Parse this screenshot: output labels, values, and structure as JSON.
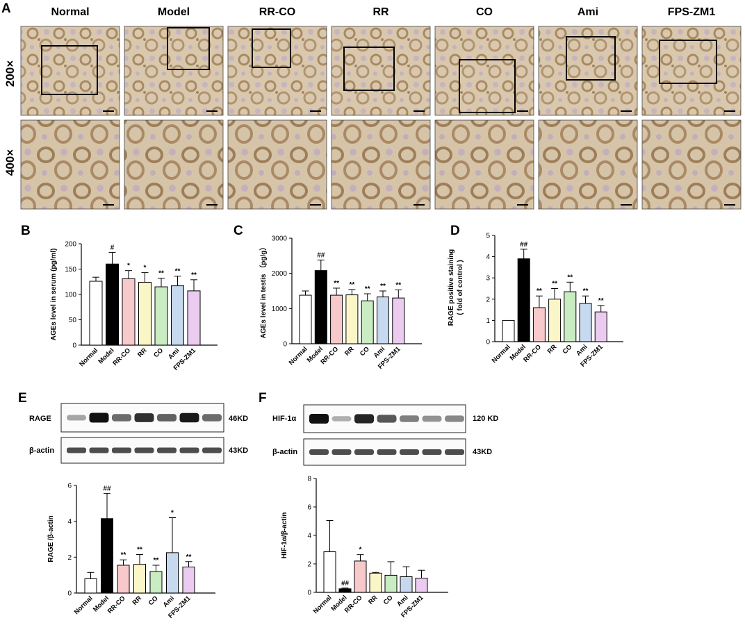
{
  "colors": {
    "Normal": "#ffffff",
    "Model": "#000000",
    "RR-CO": "#f7c9cb",
    "RR": "#fbf6c8",
    "CO": "#c9ecc3",
    "Ami": "#c6d9ef",
    "FPS-ZM1": "#eccbf1"
  },
  "panelA": {
    "letter": "A",
    "groups": [
      "Normal",
      "Model",
      "RR-CO",
      "RR",
      "CO",
      "Ami",
      "FPS-ZM1"
    ],
    "mag_200": "200×",
    "mag_400": "400×"
  },
  "blotE": {
    "letter": "E",
    "target_label": "RAGE",
    "target_kd": "46KD",
    "actin_label": "β-actin",
    "actin_kd": "43KD",
    "target_band_intensity": [
      0.25,
      1.0,
      0.55,
      0.85,
      0.6,
      0.95,
      0.55
    ]
  },
  "blotF": {
    "letter": "F",
    "target_label": "HIF-1α",
    "target_kd": "120 KD",
    "actin_label": "β-actin",
    "actin_kd": "43KD",
    "target_band_intensity": [
      1.0,
      0.2,
      0.9,
      0.65,
      0.45,
      0.35,
      0.4
    ]
  },
  "chart_data": [
    {
      "panel": "B",
      "type": "bar",
      "categories": [
        "Normal",
        "Model",
        "RR-CO",
        "RR",
        "CO",
        "Ami",
        "FPS-ZM1"
      ],
      "values": [
        126,
        160,
        131,
        124,
        115,
        117,
        107
      ],
      "errors": [
        8,
        23,
        16,
        19,
        17,
        19,
        22
      ],
      "annotations": [
        "",
        "#",
        "*",
        "*",
        "**",
        "**",
        "**"
      ],
      "ylabel": "AGEs level in serum (pg/ml)",
      "ylim": [
        0,
        200
      ],
      "yticks": [
        0,
        50,
        100,
        150,
        200
      ]
    },
    {
      "panel": "C",
      "type": "bar",
      "categories": [
        "Normal",
        "Model",
        "RR-CO",
        "RR",
        "CO",
        "Ami",
        "FPS-ZM1"
      ],
      "values": [
        1380,
        2080,
        1380,
        1390,
        1220,
        1330,
        1300
      ],
      "errors": [
        120,
        300,
        200,
        150,
        200,
        170,
        230
      ],
      "annotations": [
        "",
        "##",
        "**",
        "**",
        "**",
        "**",
        "**"
      ],
      "ylabel": "AGEs level in testis （pg/g）",
      "ylim": [
        0,
        3000
      ],
      "yticks": [
        0,
        1000,
        2000,
        3000
      ]
    },
    {
      "panel": "D",
      "type": "bar",
      "categories": [
        "Normal",
        "Model",
        "RR-CO",
        "RR",
        "CO",
        "Ami",
        "FPS-ZM1"
      ],
      "values": [
        1.0,
        3.9,
        1.6,
        2.0,
        2.35,
        1.8,
        1.4
      ],
      "errors": [
        0,
        0.45,
        0.55,
        0.5,
        0.45,
        0.35,
        0.3
      ],
      "annotations": [
        "",
        "##",
        "**",
        "**",
        "**",
        "**",
        "**"
      ],
      "ylabel": "RAGE positive staining\n( fold of control )",
      "ylim": [
        0,
        5
      ],
      "yticks": [
        0,
        1,
        2,
        3,
        4,
        5
      ]
    },
    {
      "panel": "E",
      "type": "bar",
      "categories": [
        "Normal",
        "Model",
        "RR-CO",
        "RR",
        "CO",
        "Ami",
        "FPS-ZM1"
      ],
      "values": [
        0.8,
        4.15,
        1.55,
        1.6,
        1.2,
        2.25,
        1.45
      ],
      "errors": [
        0.35,
        1.4,
        0.3,
        0.55,
        0.35,
        1.95,
        0.3
      ],
      "annotations": [
        "",
        "##",
        "**",
        "**",
        "**",
        "*",
        "**"
      ],
      "ylabel": "RAGE /β-actin",
      "ylim": [
        0,
        6
      ],
      "yticks": [
        0,
        2,
        4,
        6
      ]
    },
    {
      "panel": "F",
      "type": "bar",
      "categories": [
        "Normal",
        "Model",
        "RR-CO",
        "RR",
        "CO",
        "Ami",
        "FPS-ZM1"
      ],
      "values": [
        2.85,
        0.25,
        2.2,
        1.35,
        1.2,
        1.1,
        1.0
      ],
      "errors": [
        2.2,
        0.05,
        0.45,
        0.05,
        0.95,
        0.7,
        0.55
      ],
      "annotations": [
        "",
        "##",
        "*",
        "",
        "",
        "",
        ""
      ],
      "ylabel": "HIF-1α/β-actin",
      "ylim": [
        0,
        8
      ],
      "yticks": [
        0,
        2,
        4,
        6,
        8
      ]
    }
  ]
}
